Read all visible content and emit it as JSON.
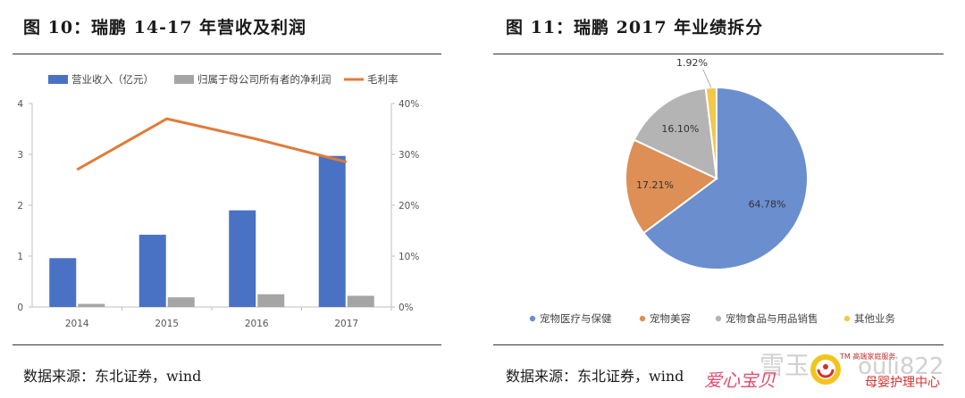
{
  "left": {
    "title": "图 10：瑞鹏 14-17 年营收及利润",
    "source": "数据来源：东北证券，wind"
  },
  "right": {
    "title": "图 11：瑞鹏 2017 年业绩拆分",
    "source": "数据来源：东北证券，wind"
  },
  "watermark": {
    "brand_text": "爱心宝贝",
    "tm_text": "TM 高端家庭服务",
    "sub_text": "母婴护理中心",
    "id_text": "ouli822",
    "faded_text": "雪玉"
  },
  "colors": {
    "blue": "#4a72c4",
    "gray": "#a5a5a5",
    "orange": "#e07b39",
    "pie_blue": "#6b8ecf",
    "pie_orange": "#dd8f55",
    "pie_gray": "#b4b4b4",
    "pie_yellow": "#f1c84a"
  },
  "chart_data": [
    {
      "type": "bar",
      "categories": [
        "2014",
        "2015",
        "2016",
        "2017"
      ],
      "series": [
        {
          "name": "营业收入（亿元）",
          "type": "bar",
          "axis": "left",
          "values": [
            0.96,
            1.42,
            1.9,
            2.97
          ]
        },
        {
          "name": "归属于母公司所有者的净利润",
          "type": "bar",
          "axis": "left",
          "values": [
            0.06,
            0.19,
            0.25,
            0.22
          ]
        },
        {
          "name": "毛利率",
          "type": "line",
          "axis": "right",
          "values": [
            27,
            37,
            33,
            28.5
          ]
        }
      ],
      "yticks_left": [
        "0",
        "1",
        "2",
        "3",
        "4"
      ],
      "yticks_right": [
        "0%",
        "10%",
        "20%",
        "30%",
        "40%"
      ],
      "ylim_left": [
        0,
        4
      ],
      "ylim_right": [
        0,
        40
      ],
      "legend": "top"
    },
    {
      "type": "pie",
      "categories": [
        "宠物医疗与保健",
        "宠物美容",
        "宠物食品与用品销售",
        "其他业务"
      ],
      "values": [
        64.78,
        17.21,
        16.1,
        1.92
      ],
      "labels": [
        "64.78%",
        "17.21%",
        "16.10%",
        "1.92%"
      ],
      "legend": "bottom"
    }
  ]
}
